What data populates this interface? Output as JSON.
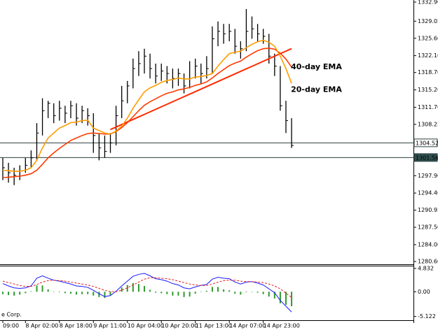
{
  "chart_data": [
    {
      "type": "ohlc",
      "categories": [
        "09:00",
        null,
        null,
        null,
        "8 Apr 02:00",
        null,
        null,
        null,
        null,
        null,
        "8 Apr 18:00",
        null,
        null,
        null,
        null,
        null,
        "9 Apr 11:00",
        null,
        null,
        null,
        null,
        null,
        "10 Apr 04:00",
        null,
        null,
        null,
        null,
        null,
        "10 Apr 20:00",
        null,
        null,
        null,
        null,
        null,
        "11 Apr 13:00",
        null,
        null,
        null,
        null,
        null,
        "14 Apr 07:00",
        null,
        null,
        null,
        null,
        null,
        "14 Apr 23:00",
        null,
        null,
        null,
        null,
        null
      ],
      "high": [
        1301.5,
        1300.5,
        1299.5,
        1300.0,
        1301.5,
        1303.0,
        1308.5,
        1313.5,
        1313.0,
        1312.5,
        1313.0,
        1312.0,
        1313.0,
        1312.5,
        1312.0,
        1311.5,
        1310.5,
        1306.5,
        1306.0,
        1306.5,
        1312.0,
        1316.0,
        1317.0,
        1321.5,
        1323.0,
        1323.5,
        1322.5,
        1320.5,
        1320.5,
        1320.0,
        1319.5,
        1319.5,
        1318.5,
        1321.0,
        1321.5,
        1320.5,
        1322.0,
        1328.0,
        1329.0,
        1328.5,
        1328.5,
        1327.5,
        1325.0,
        1331.5,
        1330.0,
        1328.5,
        1327.5,
        1326.5,
        1322.5,
        1320.0,
        1313.0,
        1309.5
      ],
      "low": [
        1297.0,
        1296.5,
        1296.0,
        1297.0,
        1298.5,
        1299.5,
        1301.0,
        1306.0,
        1309.5,
        1308.5,
        1309.0,
        1308.5,
        1309.5,
        1308.0,
        1308.5,
        1308.0,
        1302.5,
        1301.0,
        1301.5,
        1302.5,
        1304.0,
        1309.5,
        1312.5,
        1315.5,
        1318.0,
        1318.5,
        1317.5,
        1316.5,
        1317.0,
        1316.5,
        1315.5,
        1316.0,
        1314.5,
        1315.5,
        1317.5,
        1316.5,
        1317.5,
        1318.5,
        1324.0,
        1324.5,
        1325.0,
        1322.5,
        1321.5,
        1323.0,
        1325.5,
        1325.0,
        1324.5,
        1320.5,
        1318.0,
        1311.0,
        1306.5,
        1303.5
      ],
      "close": [
        1299.5,
        1298.5,
        1298.0,
        1298.8,
        1300.0,
        1301.5,
        1306.5,
        1311.0,
        1312.5,
        1310.0,
        1311.5,
        1310.5,
        1312.0,
        1309.5,
        1311.0,
        1310.0,
        1306.0,
        1303.5,
        1302.8,
        1304.5,
        1310.0,
        1313.0,
        1316.0,
        1319.5,
        1320.5,
        1322.0,
        1319.5,
        1318.0,
        1319.0,
        1318.5,
        1317.5,
        1318.5,
        1316.0,
        1317.5,
        1320.0,
        1318.5,
        1319.5,
        1325.5,
        1327.0,
        1326.5,
        1327.0,
        1324.0,
        1323.5,
        1327.0,
        1327.5,
        1326.5,
        1326.0,
        1322.0,
        1320.0,
        1312.0,
        1309.0,
        1304.0
      ],
      "bar_color": "#000000",
      "series": [
        {
          "name": "40-day EMA",
          "color": "#ff3a00",
          "values": [
            1297.5,
            1297.6,
            1297.7,
            1297.8,
            1298.0,
            1298.3,
            1299.0,
            1300.2,
            1301.5,
            1302.5,
            1303.4,
            1304.2,
            1305.0,
            1305.5,
            1306.0,
            1306.4,
            1306.5,
            1306.4,
            1306.3,
            1306.3,
            1306.8,
            1307.6,
            1308.6,
            1309.8,
            1311.0,
            1312.1,
            1312.8,
            1313.4,
            1314.0,
            1314.5,
            1314.8,
            1315.2,
            1315.4,
            1315.7,
            1316.1,
            1316.4,
            1316.8,
            1317.6,
            1318.5,
            1319.3,
            1320.1,
            1320.6,
            1321.0,
            1321.8,
            1322.5,
            1323.1,
            1323.5,
            1323.6,
            1323.4,
            1322.6,
            1321.4,
            1319.8
          ]
        },
        {
          "name": "20-day EMA",
          "color": "#ff9c00",
          "values": [
            1299.0,
            1298.9,
            1298.8,
            1298.8,
            1299.0,
            1299.5,
            1301.0,
            1303.5,
            1305.5,
            1306.5,
            1307.5,
            1308.0,
            1308.6,
            1308.7,
            1309.0,
            1309.1,
            1307.5,
            1307.0,
            1306.5,
            1306.3,
            1306.9,
            1307.9,
            1309.5,
            1311.5,
            1313.2,
            1314.8,
            1315.6,
            1316.1,
            1316.7,
            1317.1,
            1317.3,
            1317.6,
            1317.4,
            1317.4,
            1317.8,
            1317.9,
            1318.1,
            1318.5,
            1320.0,
            1321.3,
            1322.5,
            1322.8,
            1323.0,
            1323.7,
            1324.4,
            1324.9,
            1325.2,
            1324.8,
            1324.0,
            1322.0,
            1319.5,
            1316.5
          ]
        }
      ],
      "trendline": {
        "color": "#ff2a00",
        "values": [
          null,
          null,
          null,
          null,
          null,
          null,
          null,
          null,
          null,
          null,
          null,
          null,
          null,
          null,
          null,
          null,
          null,
          null,
          null,
          1307.2,
          1307.71,
          1308.22,
          1308.73,
          1309.24,
          1309.75,
          1310.26,
          1310.77,
          1311.28,
          1311.79,
          1312.3,
          1312.81,
          1313.32,
          1313.83,
          1314.34,
          1314.85,
          1315.36,
          1315.87,
          1316.38,
          1316.89,
          1317.4,
          1317.91,
          1318.42,
          1318.93,
          1319.44,
          1319.95,
          1320.46,
          1320.97,
          1321.48,
          1321.99,
          1322.5,
          1323.01,
          1323.52
        ]
      },
      "levels": [
        1304.52,
        1301.56
      ],
      "level_colors": [
        "#ffffff",
        "#2f4f4f"
      ],
      "ylim": [
        1280.04,
        1333.32
      ],
      "yticks": [
        {
          "value": 1332.9,
          "label": "1332.90"
        },
        1329.05,
        {
          "value": 1325.6,
          "label": "1325.60"
        },
        {
          "value": 1322.1,
          "label": "1322.10"
        },
        {
          "value": 1318.7,
          "label": "1318.70"
        },
        {
          "value": 1315.2,
          "label": "1315.20"
        },
        {
          "value": 1311.7,
          "label": "1311.70"
        },
        1308.25,
        {
          "value": 1297.9,
          "label": "1297.90"
        },
        {
          "value": 1294.4,
          "label": "1294.40"
        },
        1290.95,
        {
          "value": 1287.5,
          "label": "1287.50"
        },
        {
          "value": 1284.0,
          "label": "1284.00"
        },
        {
          "value": 1280.6,
          "label": "1280.60"
        }
      ]
    },
    {
      "type": "macd",
      "histogram": {
        "color": "#2e9a2e",
        "values": [
          -0.5,
          -0.7,
          -0.8,
          -0.6,
          -0.3,
          0.1,
          1.3,
          1.3,
          0.5,
          0.0,
          -0.1,
          -0.3,
          -0.4,
          -0.6,
          -0.5,
          -0.5,
          -0.8,
          -1.1,
          -1.3,
          -0.8,
          0.1,
          0.9,
          1.4,
          1.8,
          1.6,
          1.2,
          0.4,
          -0.2,
          -0.3,
          -0.5,
          -0.8,
          -0.8,
          -1.1,
          -1.0,
          -0.4,
          0.0,
          0.2,
          1.0,
          1.0,
          0.5,
          0.3,
          -0.4,
          -0.6,
          -0.1,
          0.0,
          -0.2,
          -0.5,
          -1.0,
          -1.4,
          -2.4,
          -2.7,
          -3.0
        ]
      },
      "series": [
        {
          "color": "#1a1aff",
          "style": "solid",
          "values": [
            1.7,
            1.2,
            0.8,
            0.7,
            0.8,
            1.2,
            2.8,
            3.3,
            2.8,
            2.4,
            2.2,
            1.9,
            1.6,
            1.2,
            1.1,
            0.9,
            0.3,
            -0.4,
            -1.0,
            -0.8,
            0.1,
            1.2,
            2.2,
            3.2,
            3.6,
            3.8,
            3.3,
            2.7,
            2.5,
            2.2,
            1.7,
            1.4,
            0.8,
            0.6,
            1.0,
            1.3,
            1.5,
            2.6,
            3.0,
            2.8,
            2.7,
            2.0,
            1.6,
            2.0,
            2.1,
            1.8,
            1.4,
            0.6,
            -0.2,
            -1.8,
            -3.0,
            -4.2
          ]
        },
        {
          "color": "#e02020",
          "style": "dashed",
          "values": [
            2.2,
            1.9,
            1.6,
            1.3,
            1.1,
            1.1,
            1.5,
            2.0,
            2.3,
            2.4,
            2.3,
            2.2,
            2.0,
            1.8,
            1.6,
            1.4,
            1.1,
            0.7,
            0.3,
            0.0,
            0.0,
            0.3,
            0.8,
            1.4,
            2.0,
            2.6,
            2.9,
            2.9,
            2.8,
            2.7,
            2.5,
            2.2,
            1.9,
            1.6,
            1.4,
            1.3,
            1.3,
            1.6,
            2.0,
            2.3,
            2.4,
            2.4,
            2.2,
            2.1,
            2.1,
            2.0,
            1.9,
            1.6,
            1.2,
            0.6,
            -0.3,
            -1.2
          ]
        }
      ],
      "ylim": [
        -5.9,
        5.4
      ],
      "yticks": [
        4.832,
        {
          "value": 0,
          "label": "0.00"
        },
        -5.122
      ],
      "watermark": "e Corp."
    }
  ]
}
